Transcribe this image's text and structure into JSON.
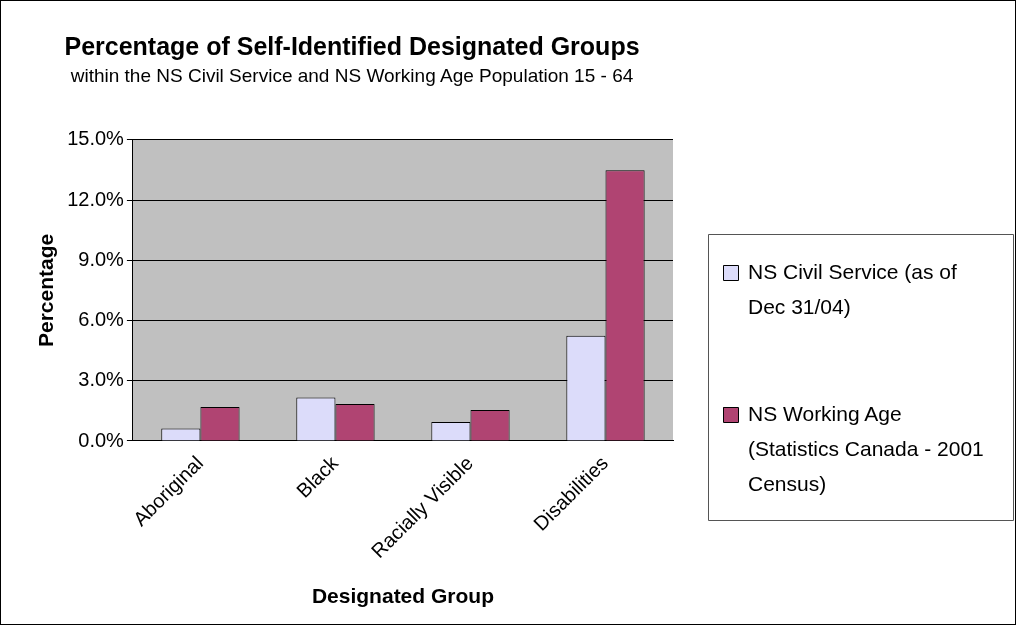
{
  "chart_data": {
    "type": "bar",
    "title": "Percentage of Self-Identified Designated Groups",
    "subtitle": "within the NS Civil Service and NS Working Age Population 15 - 64",
    "xlabel": "Designated Group",
    "ylabel": "Percentage",
    "categories": [
      "Aboriginal",
      "Black",
      "Racially Visible",
      "Disabilities"
    ],
    "series": [
      {
        "name": "NS Civil Service (as of Dec 31/04)",
        "color": "#dcdcfa",
        "values": [
          0.62,
          2.16,
          0.94,
          5.24
        ]
      },
      {
        "name": "NS Working Age (Statistics Canada - 2001 Census)",
        "color": "#b04472",
        "values": [
          1.69,
          1.84,
          1.54,
          13.48
        ]
      }
    ],
    "ylim": [
      0,
      15
    ],
    "yticks": [
      {
        "value": 0,
        "label": "0.0%"
      },
      {
        "value": 3,
        "label": "3.0%"
      },
      {
        "value": 6,
        "label": "6.0%"
      },
      {
        "value": 9,
        "label": "9.0%"
      },
      {
        "value": 12,
        "label": "12.0%"
      },
      {
        "value": 15,
        "label": "15.0%"
      }
    ],
    "grid": "y",
    "legend": "right"
  }
}
